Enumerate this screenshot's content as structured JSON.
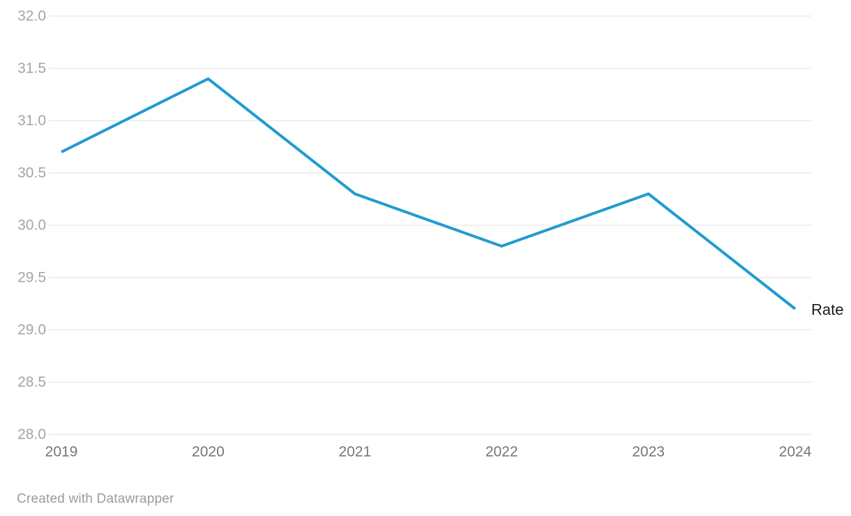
{
  "chart_data": {
    "type": "line",
    "x": [
      "2019",
      "2020",
      "2021",
      "2022",
      "2023",
      "2024"
    ],
    "series": [
      {
        "name": "Rate",
        "values": [
          30.7,
          31.4,
          30.3,
          29.8,
          30.3,
          29.2
        ]
      }
    ],
    "title": "",
    "xlabel": "",
    "ylabel": "",
    "ylim": [
      28.0,
      32.0
    ],
    "ytick_step": 0.5,
    "ytick_labels": [
      "28.0",
      "28.5",
      "29.0",
      "29.5",
      "30.0",
      "30.5",
      "31.0",
      "31.5",
      "32.0"
    ],
    "grid": "horizontal-only",
    "legend_position": "end-of-line-label",
    "colors": {
      "line": "#209bd0",
      "gridline": "#e2e2e2",
      "y_tick_label": "#a5a5a5",
      "x_tick_label": "#767676",
      "series_label": "#1a1a1a"
    }
  },
  "footer": {
    "attribution": "Created with Datawrapper"
  }
}
